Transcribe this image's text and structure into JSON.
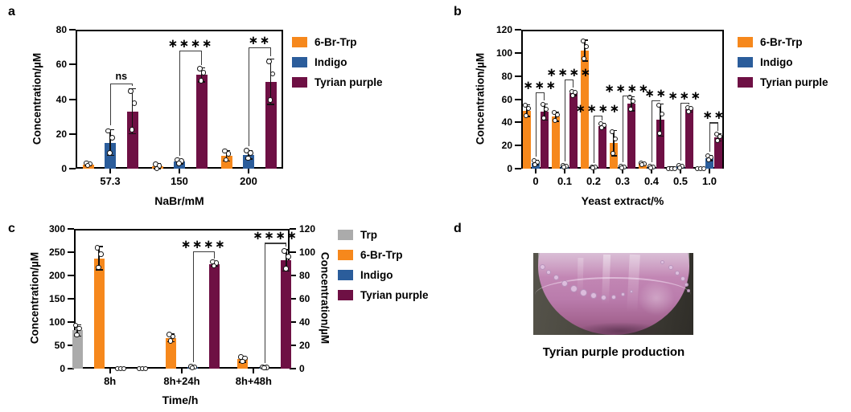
{
  "panel_letters": {
    "a": "a",
    "b": "b",
    "c": "c",
    "d": "d"
  },
  "photo_panel": {
    "caption": "Tyrian purple production"
  },
  "chart_data": [
    {
      "panel": "a",
      "type": "bar",
      "ylabel": "Concentration/µM",
      "xlabel": "NaBr/mM",
      "ylim": [
        0,
        80
      ],
      "yticks": [
        0,
        20,
        40,
        60,
        80
      ],
      "categories": [
        "57.3",
        "150",
        "200"
      ],
      "series": [
        {
          "name": "6-Br-Trp",
          "color": "#F6881C",
          "values": [
            2.5,
            1.2,
            7.5
          ],
          "err": [
            0.8,
            1.5,
            3
          ]
        },
        {
          "name": "Indigo",
          "color": "#2B5D9B",
          "values": [
            15,
            4,
            8
          ],
          "err": [
            7.5,
            1.2,
            2.5
          ]
        },
        {
          "name": "Tyrian purple",
          "color": "#6E1044",
          "values": [
            33,
            54,
            50
          ],
          "err": [
            13,
            4,
            13
          ]
        }
      ],
      "significance": [
        {
          "group": 0,
          "label": "ns",
          "top": 49,
          "from": 1,
          "to": 2
        },
        {
          "group": 1,
          "label": "****",
          "top": 68,
          "from": 1,
          "to": 2
        },
        {
          "group": 2,
          "label": "**",
          "top": 70,
          "from": 1,
          "to": 2
        }
      ],
      "legend_position": "right"
    },
    {
      "panel": "b",
      "type": "bar",
      "ylabel": "Concentration/µM",
      "xlabel": "Yeast extract/%",
      "ylim": [
        0,
        120
      ],
      "yticks": [
        0,
        20,
        40,
        60,
        80,
        100,
        120
      ],
      "categories": [
        "0",
        "0.1",
        "0.2",
        "0.3",
        "0.4",
        "0.5",
        "1.0"
      ],
      "series": [
        {
          "name": "6-Br-Trp",
          "color": "#F6881C",
          "values": [
            50,
            45,
            102,
            22,
            4,
            0.8,
            0.5
          ],
          "err": [
            5,
            4,
            9,
            11,
            1,
            0.5,
            0.4
          ]
        },
        {
          "name": "Indigo",
          "color": "#2B5D9B",
          "values": [
            5,
            2,
            1,
            1.3,
            1.5,
            2,
            9
          ],
          "err": [
            2,
            0.6,
            0.5,
            0.5,
            0.6,
            1.2,
            2
          ]
        },
        {
          "name": "Tyrian purple",
          "color": "#6E1044",
          "values": [
            49,
            65,
            37,
            56,
            42,
            51,
            27
          ],
          "err": [
            7,
            2,
            2,
            6,
            14,
            2,
            3
          ]
        }
      ],
      "significance": [
        {
          "group": 0,
          "label": "***",
          "top": 66,
          "from": 1,
          "to": 2
        },
        {
          "group": 1,
          "label": "****",
          "top": 77,
          "from": 1,
          "to": 2
        },
        {
          "group": 2,
          "label": "****",
          "top": 46,
          "from": 1,
          "to": 2
        },
        {
          "group": 3,
          "label": "****",
          "top": 63,
          "from": 1,
          "to": 2
        },
        {
          "group": 4,
          "label": "**",
          "top": 59,
          "from": 1,
          "to": 2
        },
        {
          "group": 5,
          "label": "***",
          "top": 57,
          "from": 1,
          "to": 2
        },
        {
          "group": 6,
          "label": "**",
          "top": 40,
          "from": 1,
          "to": 2
        }
      ],
      "legend_position": "right"
    },
    {
      "panel": "c",
      "type": "bar",
      "ylabel": "Concentration/µM",
      "ylabel_right": "Concentration/µM",
      "xlabel": "Time/h",
      "ylim": [
        0,
        300
      ],
      "yticks": [
        0,
        50,
        100,
        150,
        200,
        250,
        300
      ],
      "ylim_right": [
        0,
        120
      ],
      "yticks_right": [
        0,
        20,
        40,
        60,
        80,
        100,
        120
      ],
      "categories": [
        "8h",
        "8h+24h",
        "8h+48h"
      ],
      "series": [
        {
          "name": "Trp",
          "color": "#ABABAB",
          "axis": "left",
          "values": [
            82,
            null,
            null
          ],
          "err": [
            12,
            0,
            0
          ]
        },
        {
          "name": "6-Br-Trp",
          "color": "#F6881C",
          "axis": "left",
          "values": [
            237,
            66,
            20
          ],
          "err": [
            25,
            8,
            6
          ]
        },
        {
          "name": "Indigo",
          "color": "#2B5D9B",
          "axis": "right",
          "values": [
            0.6,
            1.2,
            1
          ],
          "err": [
            0.5,
            0.6,
            0.5
          ]
        },
        {
          "name": "Tyrian purple",
          "color": "#6E1044",
          "axis": "right",
          "values": [
            0.5,
            90,
            93
          ],
          "err": [
            0.6,
            2,
            9
          ]
        }
      ],
      "significance": [
        {
          "group": 1,
          "label": "****",
          "top": 101,
          "from": 2,
          "to": 3
        },
        {
          "group": 2,
          "label": "****",
          "top": 108,
          "from": 2,
          "to": 3
        }
      ],
      "legend_position": "right"
    }
  ]
}
